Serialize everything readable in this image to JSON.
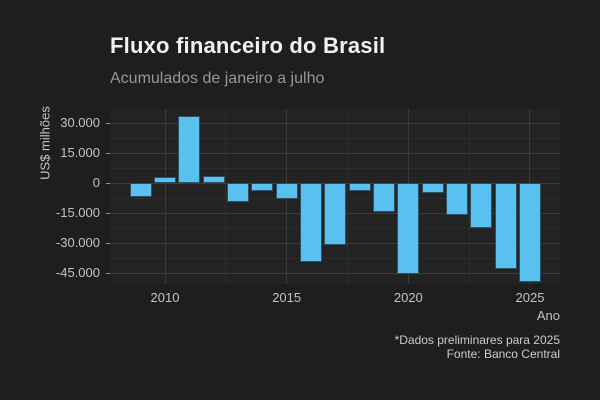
{
  "header": {
    "title": "Fluxo financeiro do Brasil",
    "subtitle": "Acumulados de janeiro a julho"
  },
  "caption": {
    "line1": "*Dados preliminares para 2025",
    "line2": "Fonte: Banco Central"
  },
  "colors": {
    "background": "#1e1e1e",
    "panel_background": "#232323",
    "grid_major": "#3b3b3b",
    "grid_minor": "#2d2d2d",
    "bar_fill": "#58c1ef",
    "bar_border": "#2f4f63",
    "title_text": "#f2f2f2",
    "subtitle_text": "#969696",
    "axis_text": "#c3c3c3",
    "caption_text": "#cccccc",
    "tick_mark": "#8f8f8f"
  },
  "chart_data": {
    "type": "bar",
    "title": "Fluxo financeiro do Brasil",
    "subtitle": "Acumulados de janeiro a julho",
    "xlabel": "Ano",
    "ylabel": "US$ milhões",
    "categories": [
      2009,
      2010,
      2011,
      2012,
      2013,
      2014,
      2015,
      2016,
      2017,
      2018,
      2019,
      2020,
      2021,
      2022,
      2023,
      2024,
      2025
    ],
    "values": [
      -7100,
      3200,
      33600,
      3700,
      -9300,
      -4000,
      -7700,
      -39200,
      -30700,
      -4000,
      -14300,
      -45300,
      -4800,
      -15800,
      -22500,
      -42900,
      -49500
    ],
    "ylim": [
      -50000,
      37000
    ],
    "grid": true,
    "legend": false,
    "y_major_ticks": [
      {
        "value": 30000,
        "label": "30.000"
      },
      {
        "value": 15000,
        "label": "15.000"
      },
      {
        "value": 0,
        "label": "0"
      },
      {
        "value": -15000,
        "label": "-15.000"
      },
      {
        "value": -30000,
        "label": "-30.000"
      },
      {
        "value": -45000,
        "label": "-45.000"
      }
    ],
    "y_minor_ticks": [
      22500,
      7500,
      -7500,
      -22500,
      -37500
    ],
    "x_major_ticks": [
      {
        "value": 2010,
        "label": "2010"
      },
      {
        "value": 2015,
        "label": "2015"
      },
      {
        "value": 2020,
        "label": "2020"
      },
      {
        "value": 2025,
        "label": "2025"
      }
    ],
    "x_minor_ticks": [
      2012.5,
      2017.5,
      2022.5
    ]
  }
}
